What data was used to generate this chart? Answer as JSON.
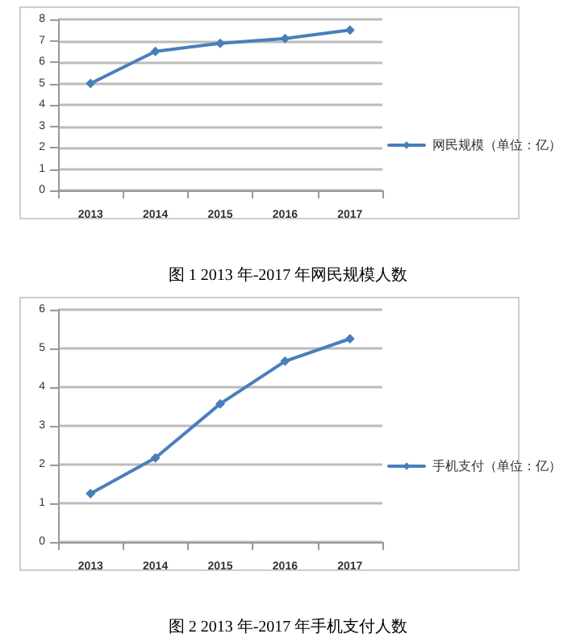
{
  "chart_data": [
    {
      "type": "line",
      "annotations": [
        "图 1 2013 年-2017 年网民规模人数"
      ],
      "categories": [
        "2013",
        "2014",
        "2015",
        "2016",
        "2017"
      ],
      "series": [
        {
          "name": "网民规模（单位：亿）",
          "color": "#4a7ebb",
          "values": [
            5.0,
            6.5,
            6.88,
            7.1,
            7.5
          ]
        }
      ],
      "ylim": [
        0,
        8
      ],
      "yticks": [
        0,
        1,
        2,
        3,
        4,
        5,
        6,
        7,
        8
      ],
      "grid": "y",
      "legend": "right",
      "marker": "diamond",
      "line_style": "solid"
    },
    {
      "type": "line",
      "annotations": [
        "图 2 2013 年-2017 年手机支付人数"
      ],
      "categories": [
        "2013",
        "2014",
        "2015",
        "2016",
        "2017"
      ],
      "series": [
        {
          "name": "手机支付（单位：亿）",
          "color": "#4a7ebb",
          "values": [
            1.25,
            2.17,
            3.57,
            4.67,
            5.25
          ]
        }
      ],
      "ylim": [
        0,
        6
      ],
      "yticks": [
        0,
        1,
        2,
        3,
        4,
        5,
        6
      ],
      "grid": "y",
      "legend": "right",
      "marker": "diamond",
      "line_style": "solid"
    }
  ]
}
